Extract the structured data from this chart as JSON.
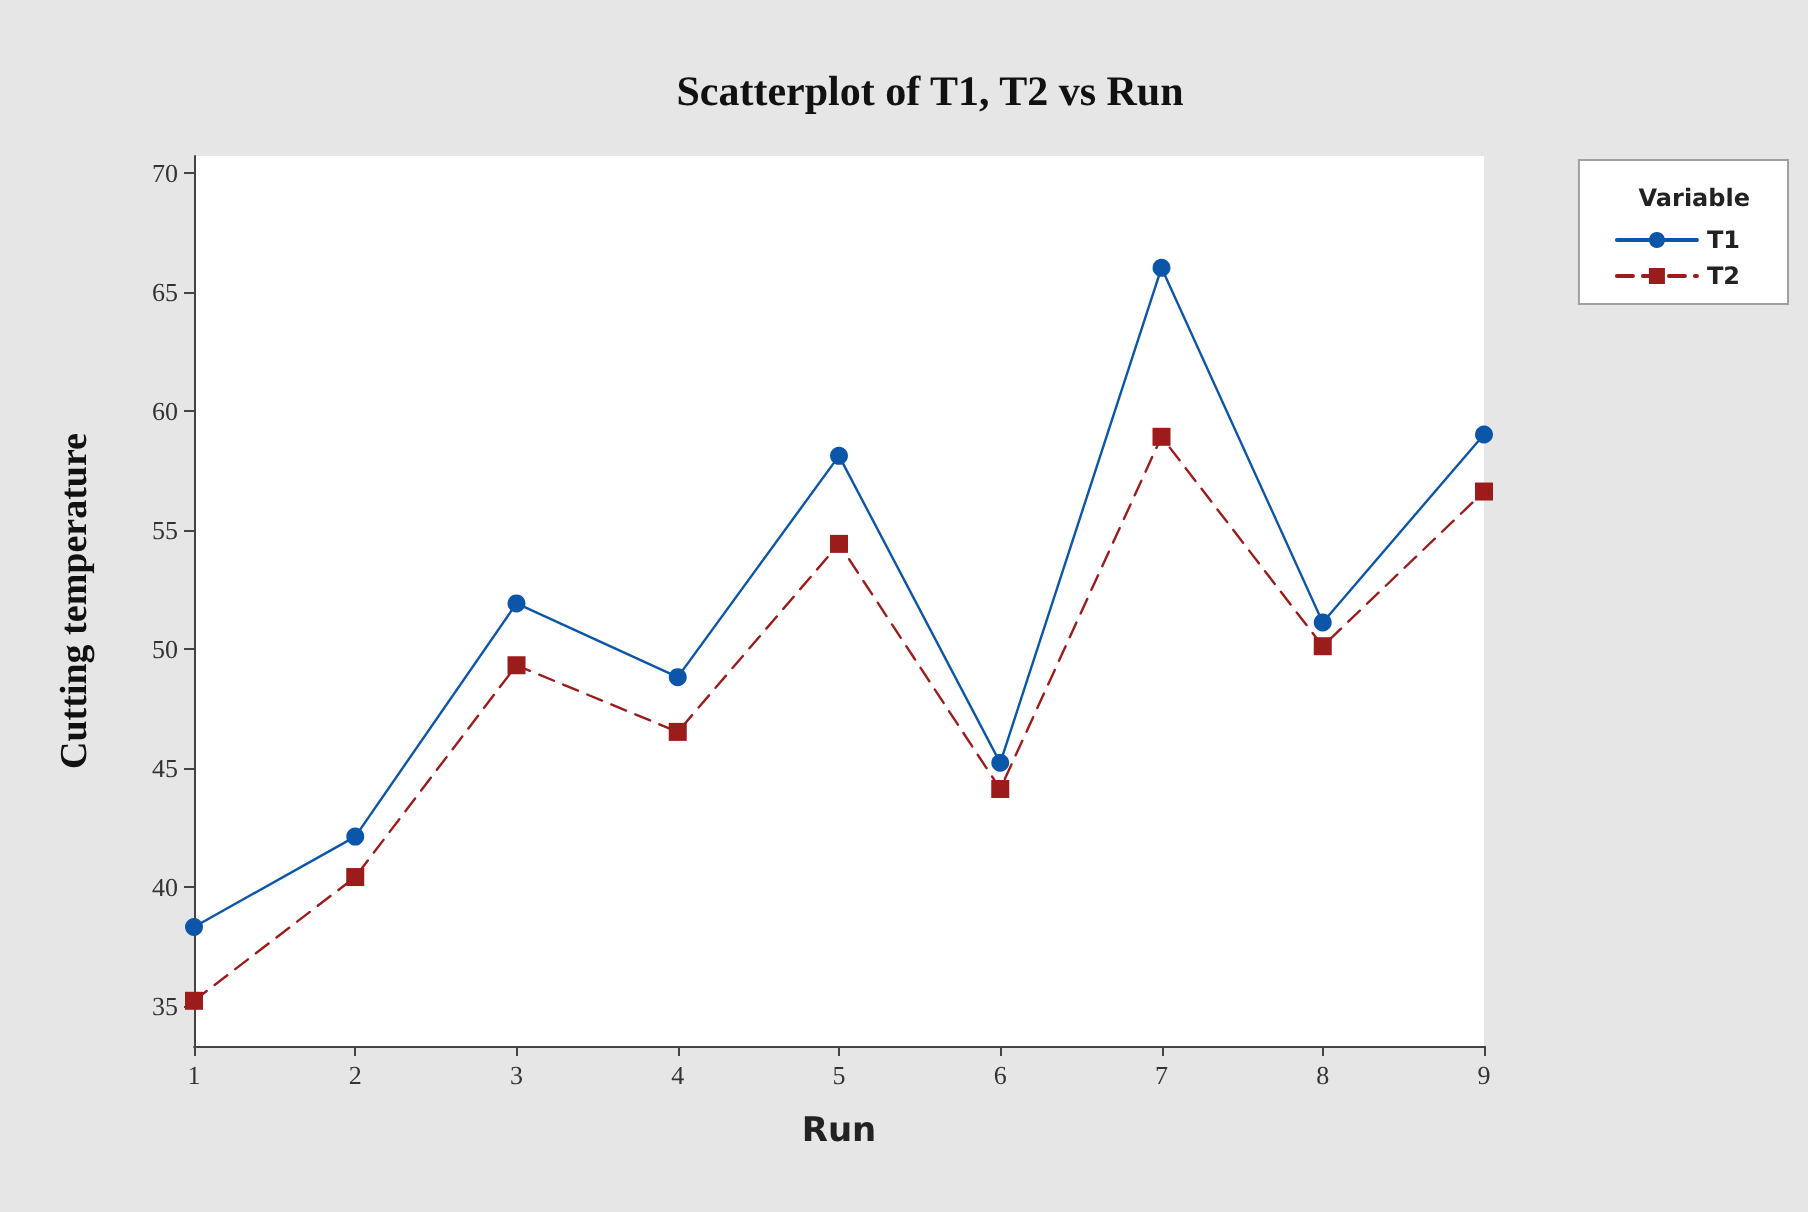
{
  "chart_data": {
    "type": "line",
    "title": "Scatterplot of T1, T2 vs Run",
    "xlabel": "Run",
    "ylabel": "Cutting temperature",
    "legend_title": "Variable",
    "x": [
      1,
      2,
      3,
      4,
      5,
      6,
      7,
      8,
      9
    ],
    "series": [
      {
        "name": "T1",
        "color": "#0b56a8",
        "marker": "circle",
        "line_style": "solid",
        "values": [
          38.3,
          42.1,
          51.9,
          48.8,
          58.1,
          45.2,
          66.0,
          51.1,
          59.0
        ]
      },
      {
        "name": "T2",
        "color": "#9c1b1b",
        "marker": "square",
        "line_style": "dashed",
        "values": [
          35.2,
          40.4,
          49.3,
          46.5,
          54.4,
          44.1,
          58.9,
          50.1,
          56.6
        ]
      }
    ],
    "xlim": [
      1,
      9
    ],
    "xticks": [
      1,
      2,
      3,
      4,
      5,
      6,
      7,
      8,
      9
    ],
    "ylim": [
      33.3,
      70.7
    ],
    "yticks": [
      35,
      40,
      45,
      50,
      55,
      60,
      65,
      70
    ],
    "grid": false,
    "legend": "top right"
  }
}
